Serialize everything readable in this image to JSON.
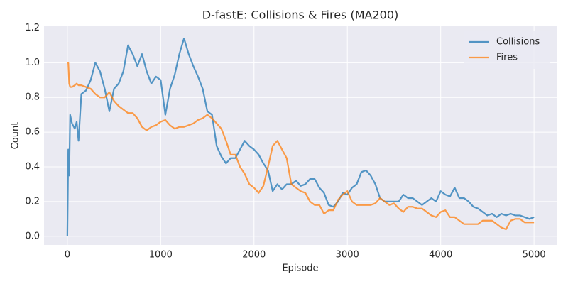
{
  "chart_data": {
    "type": "line",
    "title": "D-fastE: Collisions & Fires (MA200)",
    "x_label": "Episode",
    "y_label": "Count",
    "x": [
      0,
      10,
      20,
      30,
      50,
      80,
      100,
      120,
      150,
      200,
      250,
      300,
      350,
      400,
      450,
      500,
      550,
      600,
      650,
      700,
      750,
      800,
      850,
      900,
      950,
      1000,
      1050,
      1100,
      1150,
      1200,
      1250,
      1300,
      1350,
      1400,
      1450,
      1500,
      1550,
      1600,
      1650,
      1700,
      1750,
      1800,
      1850,
      1900,
      1950,
      2000,
      2050,
      2100,
      2150,
      2200,
      2250,
      2300,
      2350,
      2400,
      2450,
      2500,
      2550,
      2600,
      2650,
      2700,
      2750,
      2800,
      2850,
      2900,
      2950,
      3000,
      3050,
      3100,
      3150,
      3200,
      3250,
      3300,
      3350,
      3400,
      3450,
      3500,
      3550,
      3600,
      3650,
      3700,
      3750,
      3800,
      3850,
      3900,
      3950,
      4000,
      4050,
      4100,
      4150,
      4200,
      4250,
      4300,
      4350,
      4400,
      4450,
      4500,
      4550,
      4600,
      4650,
      4700,
      4750,
      4800,
      4850,
      4900,
      4950,
      5000
    ],
    "series": [
      {
        "name": "Collisions",
        "color": "#1f77b4",
        "values": [
          0.0,
          0.5,
          0.35,
          0.7,
          0.65,
          0.62,
          0.66,
          0.55,
          0.82,
          0.84,
          0.9,
          1.0,
          0.95,
          0.85,
          0.72,
          0.85,
          0.88,
          0.95,
          1.1,
          1.05,
          0.98,
          1.05,
          0.95,
          0.88,
          0.92,
          0.9,
          0.7,
          0.85,
          0.93,
          1.05,
          1.14,
          1.05,
          0.98,
          0.92,
          0.85,
          0.72,
          0.7,
          0.52,
          0.46,
          0.42,
          0.45,
          0.45,
          0.5,
          0.55,
          0.52,
          0.5,
          0.47,
          0.42,
          0.38,
          0.26,
          0.3,
          0.27,
          0.3,
          0.3,
          0.32,
          0.29,
          0.3,
          0.33,
          0.33,
          0.28,
          0.25,
          0.18,
          0.17,
          0.2,
          0.25,
          0.24,
          0.28,
          0.3,
          0.37,
          0.38,
          0.35,
          0.3,
          0.22,
          0.2,
          0.2,
          0.2,
          0.2,
          0.24,
          0.22,
          0.22,
          0.2,
          0.18,
          0.2,
          0.22,
          0.2,
          0.26,
          0.24,
          0.23,
          0.28,
          0.22,
          0.22,
          0.2,
          0.17,
          0.16,
          0.14,
          0.12,
          0.13,
          0.11,
          0.13,
          0.12,
          0.13,
          0.12,
          0.12,
          0.11,
          0.1,
          0.11
        ]
      },
      {
        "name": "Fires",
        "color": "#ff7f0e",
        "values": [
          1.0,
          1.0,
          0.88,
          0.86,
          0.86,
          0.87,
          0.88,
          0.87,
          0.87,
          0.86,
          0.85,
          0.82,
          0.8,
          0.8,
          0.83,
          0.78,
          0.75,
          0.73,
          0.71,
          0.71,
          0.68,
          0.63,
          0.61,
          0.63,
          0.64,
          0.66,
          0.67,
          0.64,
          0.62,
          0.63,
          0.63,
          0.64,
          0.65,
          0.67,
          0.68,
          0.7,
          0.68,
          0.65,
          0.62,
          0.55,
          0.47,
          0.47,
          0.4,
          0.36,
          0.3,
          0.28,
          0.25,
          0.29,
          0.4,
          0.52,
          0.55,
          0.5,
          0.45,
          0.3,
          0.28,
          0.26,
          0.25,
          0.2,
          0.18,
          0.18,
          0.13,
          0.15,
          0.15,
          0.21,
          0.24,
          0.26,
          0.2,
          0.18,
          0.18,
          0.18,
          0.18,
          0.19,
          0.22,
          0.2,
          0.18,
          0.19,
          0.16,
          0.14,
          0.17,
          0.17,
          0.16,
          0.16,
          0.14,
          0.12,
          0.11,
          0.14,
          0.15,
          0.11,
          0.11,
          0.09,
          0.07,
          0.07,
          0.07,
          0.07,
          0.09,
          0.09,
          0.09,
          0.07,
          0.05,
          0.04,
          0.09,
          0.1,
          0.1,
          0.08,
          0.08,
          0.08
        ]
      }
    ],
    "xlim": [
      -250,
      5250
    ],
    "ylim": [
      -0.05,
      1.21
    ],
    "xticks": [
      0,
      1000,
      2000,
      3000,
      4000,
      5000
    ],
    "yticks": [
      {
        "value": 0,
        "label": "0.0"
      },
      0.2,
      0.4,
      0.6,
      0.8,
      {
        "value": 1,
        "label": "1.0"
      },
      1.2
    ],
    "grid": true,
    "legend": "upper right"
  }
}
